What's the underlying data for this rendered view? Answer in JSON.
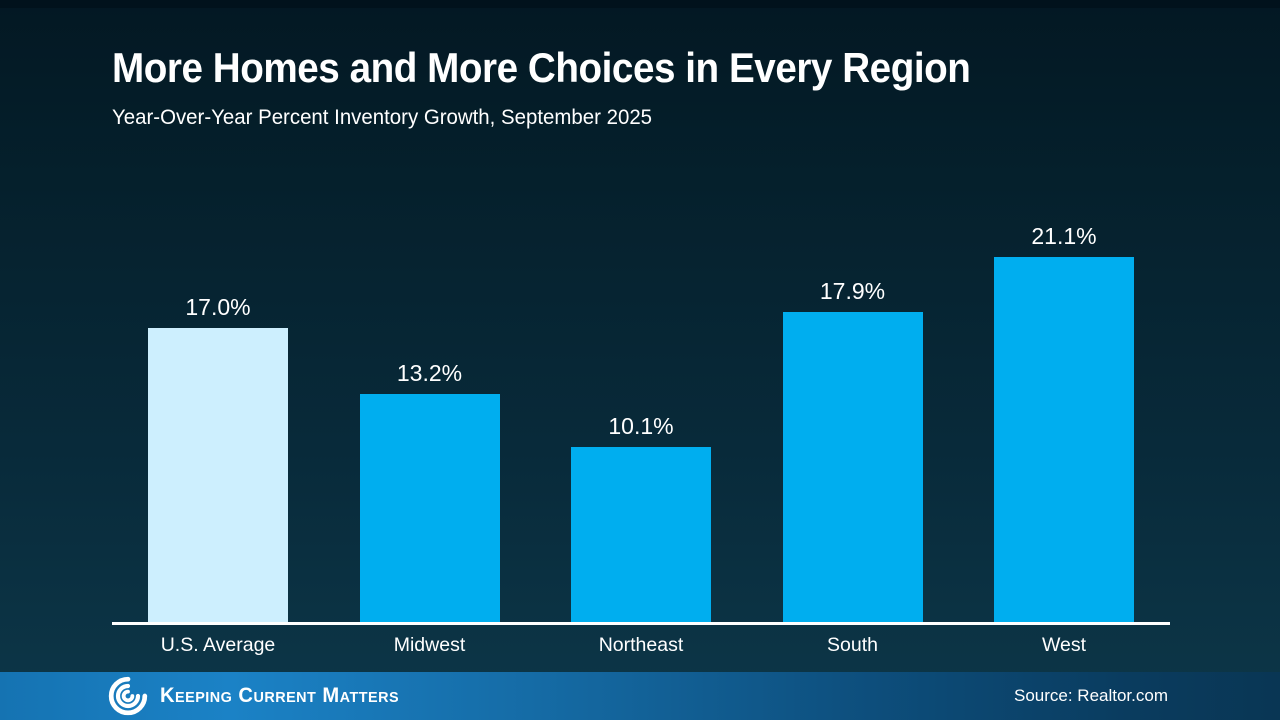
{
  "slide": {
    "title": "More Homes and More Choices in Every Region",
    "subtitle": "Year-Over-Year Percent Inventory Growth, September 2025"
  },
  "chart_data": {
    "type": "bar",
    "categories": [
      "U.S. Average",
      "Midwest",
      "Northeast",
      "South",
      "West"
    ],
    "values": [
      17.0,
      13.2,
      10.1,
      17.9,
      21.1
    ],
    "value_labels": [
      "17.0%",
      "13.2%",
      "10.1%",
      "17.9%",
      "21.1%"
    ],
    "title": "More Homes and More Choices in Every Region",
    "subtitle": "Year-Over-Year Percent Inventory Growth, September 2025",
    "xlabel": "",
    "ylabel": "",
    "ylim": [
      0,
      24
    ],
    "grid": false,
    "legend": "none",
    "bar_colors": [
      "#cdeffe",
      "#00aeef",
      "#00aeef",
      "#00aeef",
      "#00aeef"
    ]
  },
  "footer": {
    "brand": "Keeping Current Matters",
    "logo_icon": "kcm-swirl-icon",
    "source": "Source: Realtor.com"
  },
  "colors": {
    "background_top": "#031823",
    "background_bottom": "#0d3749",
    "bar_primary": "#00aeef",
    "bar_highlight": "#cdeffe",
    "axis_line": "#ffffff",
    "text": "#ffffff",
    "footer_left": "#1b82c6",
    "footer_right": "#093654"
  }
}
